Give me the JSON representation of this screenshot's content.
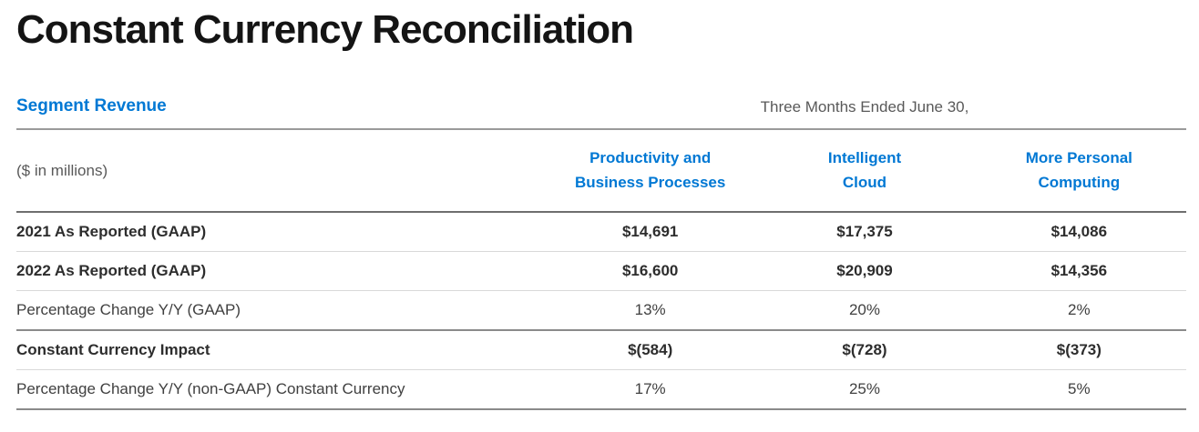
{
  "page": {
    "title": "Constant Currency Reconciliation"
  },
  "colors": {
    "accent_blue": "#0078D4",
    "title_text": "#141414",
    "muted_text": "#595959",
    "dark_rule": "#6e6e6e",
    "light_rule": "#d9d9d9"
  },
  "table": {
    "section_title": "Segment Revenue",
    "period_header": "Three Months Ended June 30,",
    "unit_label": "($ in millions)",
    "columns": [
      {
        "line1": "Productivity and",
        "line2": "Business Processes"
      },
      {
        "line1": "Intelligent",
        "line2": "Cloud"
      },
      {
        "line1": "More Personal",
        "line2": "Computing"
      }
    ],
    "rows": [
      {
        "label": "2021 As Reported (GAAP)",
        "values": [
          "$14,691",
          "$17,375",
          "$14,086"
        ]
      },
      {
        "label": "2022 As Reported (GAAP)",
        "values": [
          "$16,600",
          "$20,909",
          "$14,356"
        ]
      },
      {
        "label": "Percentage Change Y/Y (GAAP)",
        "values": [
          "13%",
          "20%",
          "2%"
        ]
      },
      {
        "label": "Constant Currency Impact",
        "values": [
          "$(584)",
          "$(728)",
          "$(373)"
        ]
      },
      {
        "label": "Percentage Change Y/Y (non-GAAP) Constant Currency",
        "values": [
          "17%",
          "25%",
          "5%"
        ]
      }
    ]
  }
}
